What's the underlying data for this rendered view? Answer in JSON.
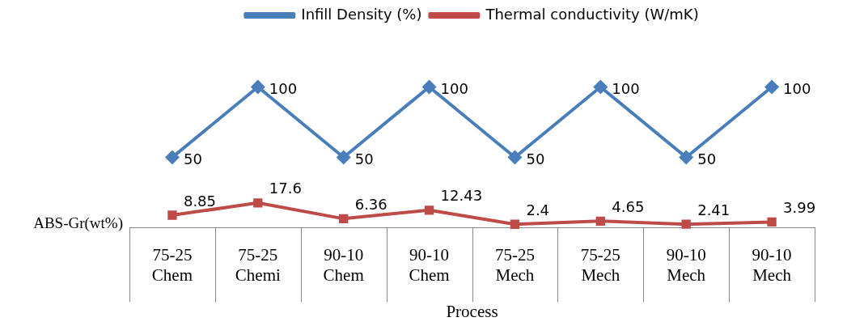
{
  "chart_data": {
    "type": "line",
    "xlabel": "Process",
    "annotations": [
      "ABS-Gr(wt%)"
    ],
    "categories": [
      "75-25\nChem",
      "75-25\nChemi",
      "90-10\nChem",
      "90-10\nChem",
      "75-25\nMech",
      "75-25\nMech",
      "90-10\nMech",
      "90-10\nMech"
    ],
    "series": [
      {
        "name": "Infill Density (%)",
        "color": "#4a7ebb",
        "marker": "diamond",
        "values": [
          50,
          100,
          50,
          100,
          50,
          100,
          50,
          100
        ]
      },
      {
        "name": "Thermal conductivity (W/mK)",
        "color": "#be4b48",
        "marker": "square",
        "values": [
          8.85,
          17.6,
          6.36,
          12.43,
          2.4,
          4.65,
          2.41,
          3.99
        ]
      }
    ],
    "data_labels": true,
    "legend": "top",
    "grid": false,
    "line_style": "solid"
  }
}
